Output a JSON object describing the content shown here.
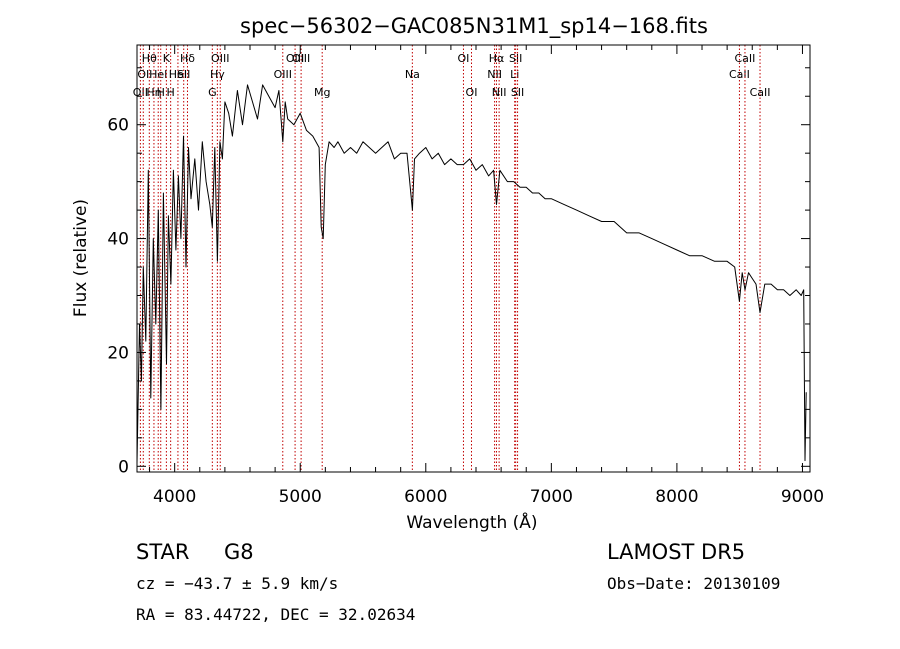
{
  "chart_data": {
    "type": "line",
    "title": "spec−56302−GAC085N31M1_sp14−168.fits",
    "xlabel": "Wavelength (Å)",
    "ylabel": "Flux (relative)",
    "xlim": [
      3700,
      9060
    ],
    "ylim": [
      -1,
      74
    ],
    "xticks": [
      4000,
      5000,
      6000,
      7000,
      8000,
      9000
    ],
    "yticks": [
      0,
      20,
      40,
      60
    ],
    "grid": false,
    "series": [
      {
        "x": [
          3700,
          3720,
          3735,
          3750,
          3770,
          3790,
          3810,
          3830,
          3850,
          3870,
          3890,
          3910,
          3935,
          3950,
          3970,
          3990,
          4010,
          4030,
          4050,
          4070,
          4090,
          4110,
          4130,
          4160,
          4190,
          4220,
          4250,
          4280,
          4300,
          4320,
          4340,
          4360,
          4380,
          4400,
          4430,
          4460,
          4500,
          4540,
          4580,
          4620,
          4660,
          4700,
          4750,
          4800,
          4830,
          4861,
          4880,
          4900,
          4950,
          5000,
          5050,
          5100,
          5150,
          5167,
          5183,
          5200,
          5230,
          5270,
          5300,
          5350,
          5400,
          5450,
          5500,
          5550,
          5600,
          5650,
          5700,
          5750,
          5800,
          5850,
          5893,
          5910,
          5950,
          6000,
          6050,
          6100,
          6150,
          6200,
          6250,
          6300,
          6350,
          6400,
          6450,
          6500,
          6540,
          6563,
          6590,
          6650,
          6700,
          6750,
          6800,
          6850,
          6900,
          6950,
          7000,
          7100,
          7200,
          7300,
          7400,
          7500,
          7600,
          7700,
          7800,
          7900,
          8000,
          8100,
          8200,
          8300,
          8400,
          8460,
          8498,
          8520,
          8542,
          8570,
          8600,
          8630,
          8662,
          8700,
          8750,
          8800,
          8850,
          8900,
          8950,
          8990,
          9010,
          9020,
          9030
        ],
        "y": [
          0.5,
          25,
          15,
          35,
          22,
          52,
          12,
          40,
          25,
          45,
          10,
          48,
          18,
          44,
          32,
          52,
          38,
          51,
          40,
          58,
          35,
          56,
          47,
          54,
          45,
          57,
          50,
          46,
          42,
          56,
          36,
          57,
          54,
          64,
          62,
          58,
          66,
          60,
          67,
          64,
          61,
          67,
          65,
          63,
          66,
          57,
          64,
          61,
          60,
          62,
          59,
          58,
          56,
          42,
          40,
          53,
          57,
          56,
          57,
          55,
          56,
          55,
          57,
          56,
          55,
          56,
          57,
          54,
          55,
          55,
          45,
          54,
          55,
          56,
          54,
          55,
          53,
          54,
          53,
          53,
          54,
          52,
          53,
          51,
          52,
          46,
          52,
          50,
          50,
          49,
          49,
          48,
          48,
          47,
          47,
          46,
          45,
          44,
          43,
          43,
          41,
          41,
          40,
          39,
          38,
          37,
          37,
          36,
          36,
          35,
          29,
          34,
          31,
          34,
          33,
          32,
          27,
          32,
          32,
          31,
          31,
          30,
          31,
          30,
          31,
          1,
          13
        ]
      }
    ],
    "lines": [
      {
        "x": 3727,
        "label": "OII",
        "row": 3
      },
      {
        "x": 3750,
        "label": "OI",
        "row": 2
      },
      {
        "x": 3798,
        "label": "Hθ",
        "row": 1
      },
      {
        "x": 3835,
        "label": "Hη",
        "row": 3
      },
      {
        "x": 3869,
        "label": "HeI",
        "row": 2
      },
      {
        "x": 3889,
        "label": "H",
        "row": 3
      },
      {
        "x": 3934,
        "label": "K",
        "row": 1
      },
      {
        "x": 3968,
        "label": "H",
        "row": 3
      },
      {
        "x": 4026,
        "label": "HeI",
        "row": 2
      },
      {
        "x": 4072,
        "label": "SII",
        "row": 2
      },
      {
        "x": 4102,
        "label": "Hδ",
        "row": 1
      },
      {
        "x": 4300,
        "label": "G",
        "row": 3
      },
      {
        "x": 4340,
        "label": "Hγ",
        "row": 2
      },
      {
        "x": 4363,
        "label": "OIII",
        "row": 1
      },
      {
        "x": 4861,
        "label": "OIII",
        "row": 2
      },
      {
        "x": 4959,
        "label": "OIII",
        "row": 1
      },
      {
        "x": 5007,
        "label": "OIII",
        "row": 1
      },
      {
        "x": 5175,
        "label": "Mg",
        "row": 3
      },
      {
        "x": 5893,
        "label": "Na",
        "row": 2
      },
      {
        "x": 6300,
        "label": "OI",
        "row": 1
      },
      {
        "x": 6364,
        "label": "OI",
        "row": 3
      },
      {
        "x": 6548,
        "label": "NII",
        "row": 2
      },
      {
        "x": 6563,
        "label": "Hα",
        "row": 1
      },
      {
        "x": 6584,
        "label": "NII",
        "row": 3
      },
      {
        "x": 6708,
        "label": "Li",
        "row": 2
      },
      {
        "x": 6716,
        "label": "SII",
        "row": 1
      },
      {
        "x": 6731,
        "label": "SII",
        "row": 3
      },
      {
        "x": 8498,
        "label": "CaII",
        "row": 2
      },
      {
        "x": 8542,
        "label": "CaII",
        "row": 1
      },
      {
        "x": 8662,
        "label": "CaII",
        "row": 3
      }
    ]
  },
  "info": {
    "object_class": "STAR",
    "subclass": "G8",
    "survey": "LAMOST DR5",
    "cz": "cz = −43.7 ± 5.9 km/s",
    "obs_date": "Obs−Date: 20130109",
    "coords": "RA =  83.44722, DEC =  32.02634"
  },
  "colors": {
    "spectrum": "#000000",
    "line_marker": "#c00000",
    "background": "#ffffff"
  }
}
